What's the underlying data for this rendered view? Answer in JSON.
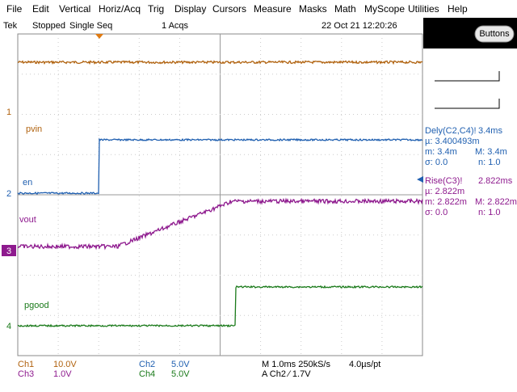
{
  "menu": [
    "File",
    "Edit",
    "Vertical",
    "Horiz/Acq",
    "Trig",
    "Display",
    "Cursors",
    "Measure",
    "Masks",
    "Math",
    "MyScope",
    "Utilities",
    "Help"
  ],
  "status": {
    "brand": "Tek",
    "state": "Stopped",
    "mode": "Single Seq",
    "acqs": "1 Acqs",
    "datetime": "22 Oct 21 12:20:26"
  },
  "buttons_label": "Buttons",
  "channel_markers": [
    "1",
    "2",
    "3",
    "4"
  ],
  "trace_labels": {
    "pvin": "pvin",
    "en": "en",
    "vout": "vout",
    "pgood": "pgood"
  },
  "measurements": [
    {
      "name": "Dely(C2,C4)!",
      "value": "3.4ms",
      "mean": "µ: 3.400493m",
      "min": "m: 3.4m",
      "max": "M: 3.4m",
      "sigma": "σ: 0.0",
      "n": "n: 1.0"
    },
    {
      "name": "Rise(C3)!",
      "value": "2.822ms",
      "mean": "µ: 2.822m",
      "min": "m: 2.822m",
      "max": "M: 2.822m",
      "sigma": "σ: 0.0",
      "n": "n: 1.0"
    }
  ],
  "readouts": {
    "ch1": "Ch1",
    "ch1_scale": "10.0V",
    "ch3": "Ch3",
    "ch3_scale": "1.0V",
    "ch2": "Ch2",
    "ch2_scale": "5.0V",
    "ch4": "Ch4",
    "ch4_scale": "5.0V",
    "timebase": "M 1.0ms 250kS/s",
    "resolution": "4.0µs/pt",
    "trigger": "A  Ch2  ⁄  1.7V"
  }
}
